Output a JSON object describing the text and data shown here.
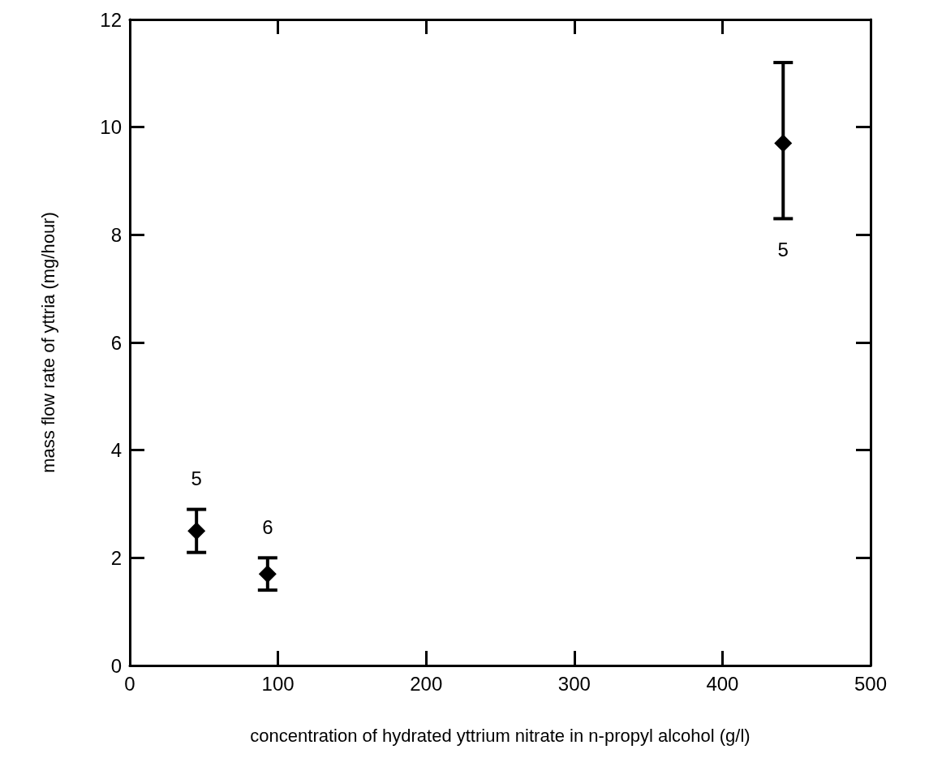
{
  "chart_data": {
    "type": "scatter",
    "xlabel": "concentration of hydrated yttrium nitrate in n-propyl alcohol (g/l)",
    "ylabel": "mass flow rate of yttria (mg/hour)",
    "x": [
      45,
      93,
      441
    ],
    "values": [
      2.5,
      1.7,
      9.7
    ],
    "errors": [
      [
        2.1,
        2.9
      ],
      [
        1.4,
        2.0
      ],
      [
        8.3,
        11.2
      ]
    ],
    "annotations": [
      "5",
      "6",
      "5"
    ],
    "color": "#000000",
    "marker": "diamond",
    "grid": false,
    "xlim": [
      0,
      500
    ],
    "xticks": [
      0,
      100,
      200,
      300,
      400,
      500
    ],
    "ylim": [
      0,
      12
    ],
    "yticks": [
      0,
      2,
      4,
      6,
      8,
      10,
      12
    ]
  }
}
